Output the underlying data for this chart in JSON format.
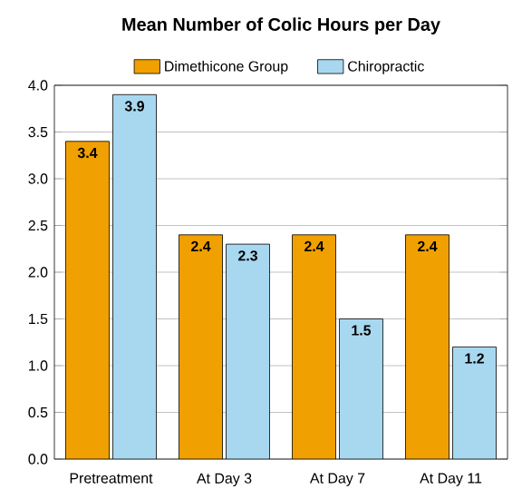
{
  "chart_data": {
    "type": "bar",
    "title": "Mean Number of Colic Hours per Day",
    "categories": [
      "Pretreatment",
      "At Day 3",
      "At Day 7",
      "At Day 11"
    ],
    "series": [
      {
        "name": "Dimethicone Group",
        "color": "#f0a000",
        "values": [
          3.4,
          2.4,
          2.4,
          2.4
        ]
      },
      {
        "name": "Chiropractic",
        "color": "#a8d8f0",
        "values": [
          3.9,
          2.3,
          1.5,
          1.2
        ]
      }
    ],
    "ylim": [
      0,
      4
    ],
    "yticks": [
      {
        "value": 0,
        "label": "0.0"
      },
      {
        "value": 0.5,
        "label": "0.5"
      },
      {
        "value": 1,
        "label": "1.0"
      },
      {
        "value": 1.5,
        "label": "1.5"
      },
      {
        "value": 2,
        "label": "2.0"
      },
      {
        "value": 2.5,
        "label": "2.5"
      },
      {
        "value": 3,
        "label": "3.0"
      },
      {
        "value": 3.5,
        "label": "3.5"
      },
      {
        "value": 4,
        "label": "4.0"
      }
    ],
    "grid": "y",
    "legend": "top",
    "data_labels": true
  }
}
